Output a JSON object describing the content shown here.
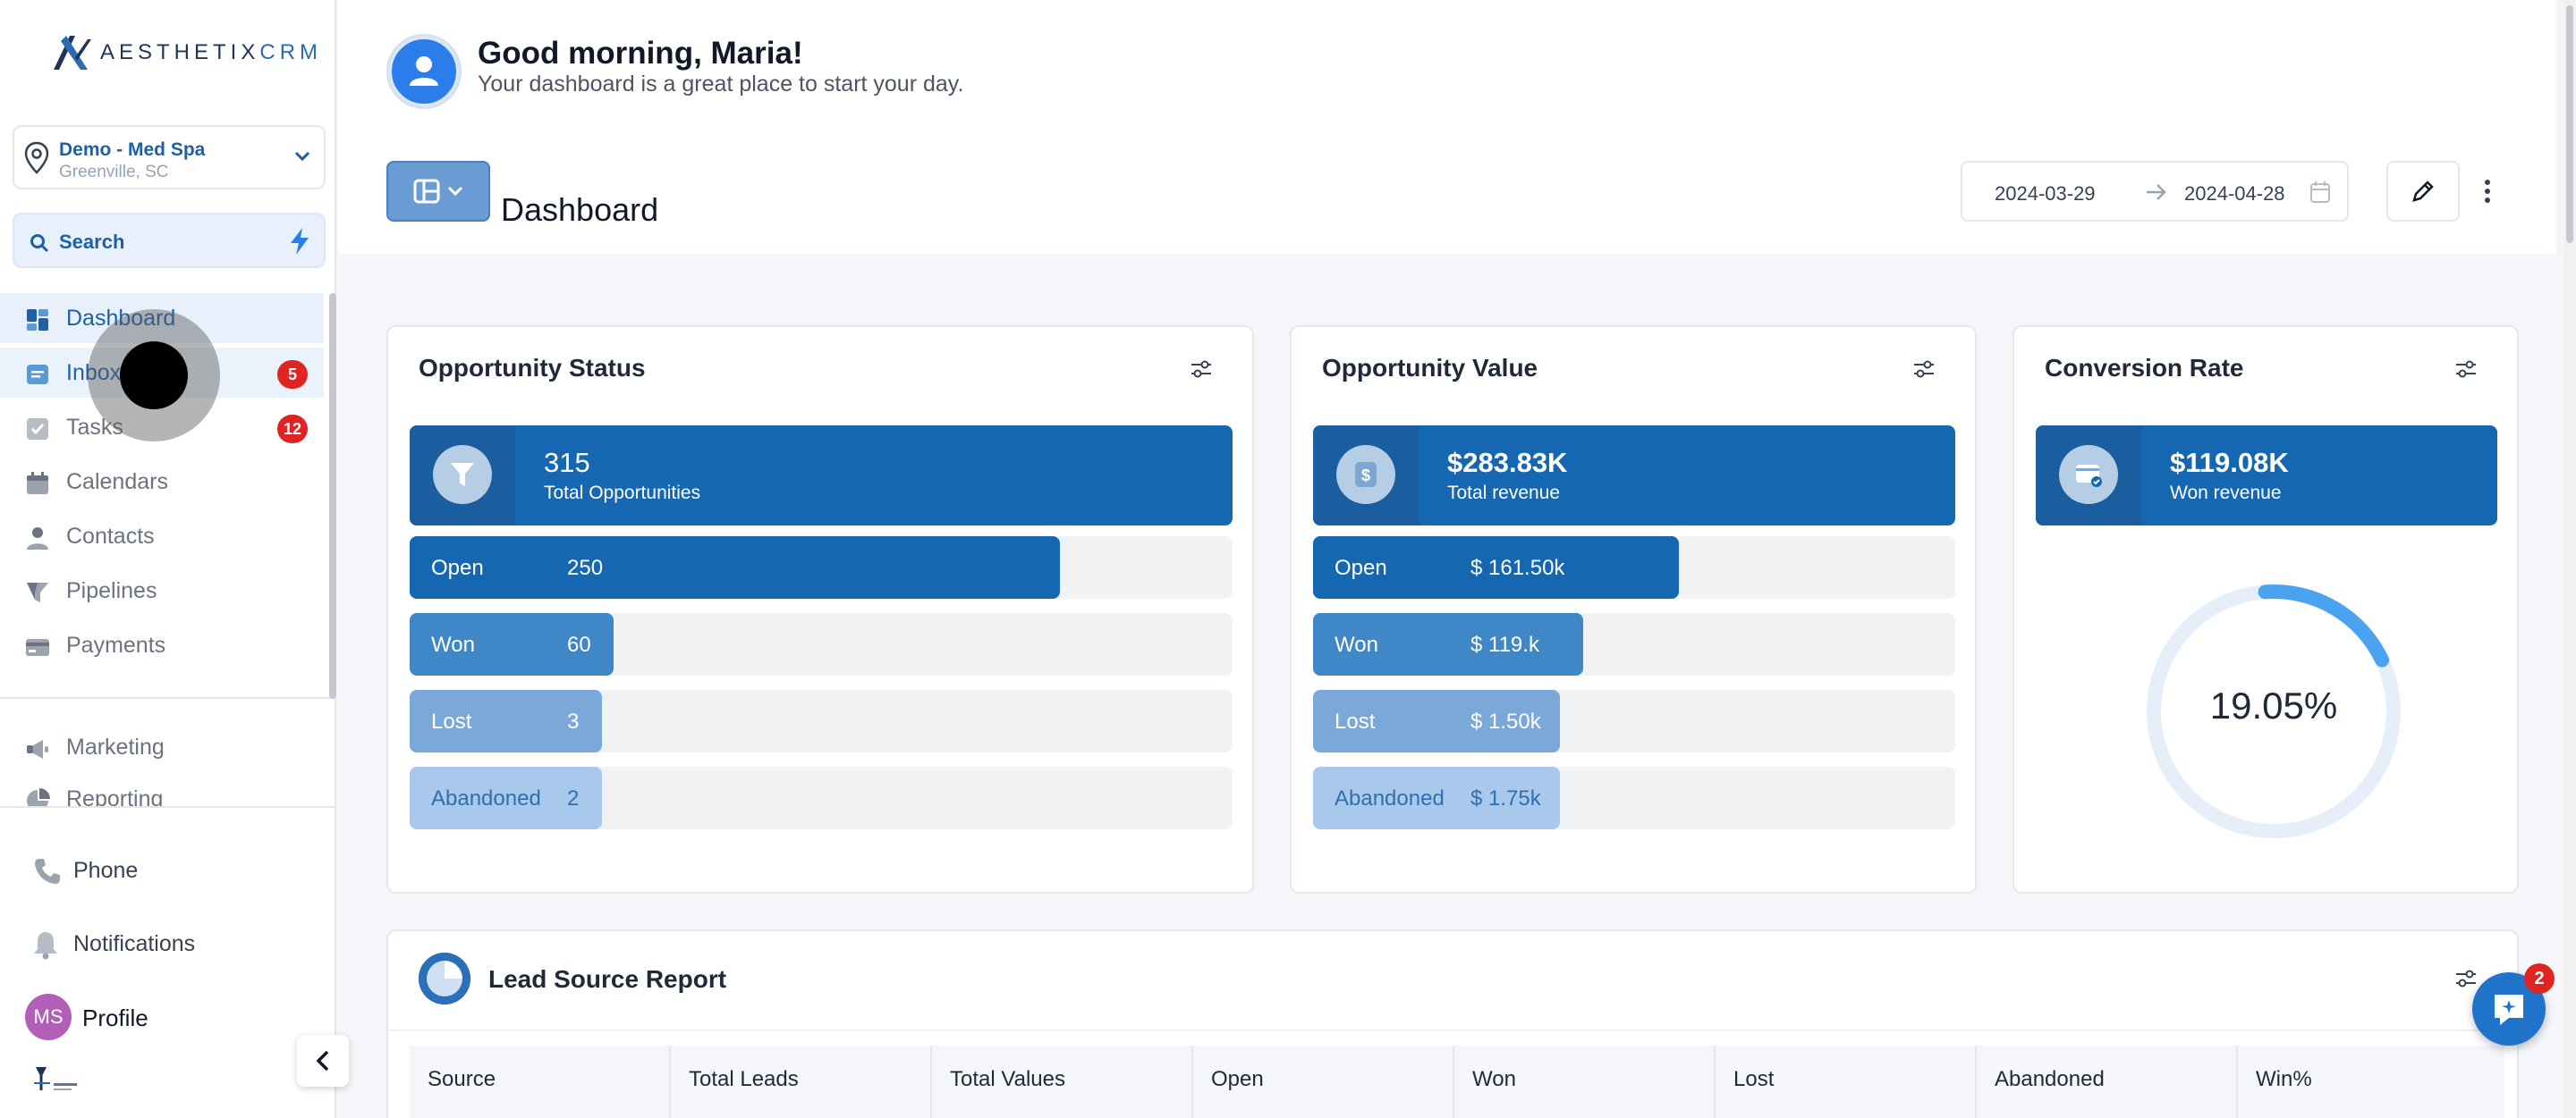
{
  "brand": {
    "logo_main": "AESTHETIX",
    "logo_accent": "CRM"
  },
  "location": {
    "name": "Demo - Med Spa",
    "city": "Greenville, SC"
  },
  "search": {
    "label": "Search"
  },
  "nav": {
    "items": [
      {
        "label": "Dashboard",
        "icon": "dashboard-icon"
      },
      {
        "label": "Inbox",
        "icon": "inbox-icon",
        "badge": "5"
      },
      {
        "label": "Tasks",
        "icon": "tasks-icon",
        "badge": "12"
      },
      {
        "label": "Calendars",
        "icon": "calendar-icon"
      },
      {
        "label": "Contacts",
        "icon": "contacts-icon"
      },
      {
        "label": "Pipelines",
        "icon": "funnel-icon"
      },
      {
        "label": "Payments",
        "icon": "payments-icon"
      },
      {
        "label": "Marketing",
        "icon": "megaphone-icon"
      },
      {
        "label": "Reporting",
        "icon": "pie-icon"
      }
    ],
    "bottom": [
      {
        "label": "Phone",
        "icon": "phone-icon"
      },
      {
        "label": "Notifications",
        "icon": "bell-icon"
      },
      {
        "label": "Profile",
        "icon": "avatar"
      }
    ]
  },
  "profile": {
    "initials": "MS"
  },
  "header": {
    "greeting": "Good morning, Maria!",
    "subtitle": "Your dashboard is a great place to start your day.",
    "page_title": "Dashboard",
    "date_from": "2024-03-29",
    "date_to": "2024-04-28"
  },
  "opportunity_status": {
    "title": "Opportunity Status",
    "hero_value": "315",
    "hero_label": "Total Opportunities",
    "bars": [
      {
        "label": "Open",
        "value": "250",
        "fraction": 0.79
      },
      {
        "label": "Won",
        "value": "60",
        "fraction": 0.248
      },
      {
        "label": "Lost",
        "value": "3",
        "fraction": 0.234
      },
      {
        "label": "Abandoned",
        "value": "2",
        "fraction": 0.234
      }
    ]
  },
  "opportunity_value": {
    "title": "Opportunity Value",
    "hero_value": "$283.83K",
    "hero_label": "Total revenue",
    "bars": [
      {
        "label": "Open",
        "value": "$ 161.50k",
        "fraction": 0.57
      },
      {
        "label": "Won",
        "value": "$ 119.k",
        "fraction": 0.42
      },
      {
        "label": "Lost",
        "value": "$ 1.50k",
        "fraction": 0.385
      },
      {
        "label": "Abandoned",
        "value": "$ 1.75k",
        "fraction": 0.385
      }
    ]
  },
  "conversion_rate": {
    "title": "Conversion Rate",
    "hero_value": "$119.08K",
    "hero_label": "Won revenue",
    "percent_label": "19.05%",
    "percent": 19.05
  },
  "lead_source": {
    "title": "Lead Source Report",
    "columns": [
      "Source",
      "Total Leads",
      "Total Values",
      "Open",
      "Won",
      "Lost",
      "Abandoned",
      "Win%"
    ]
  },
  "chat": {
    "badge": "2"
  },
  "colors": {
    "primary": "#1567b2",
    "won": "#3f87c7",
    "lost": "#7aa8d8",
    "abandoned": "#a8c8ec",
    "badge": "#e02424",
    "donut": "#4aa3ee"
  }
}
